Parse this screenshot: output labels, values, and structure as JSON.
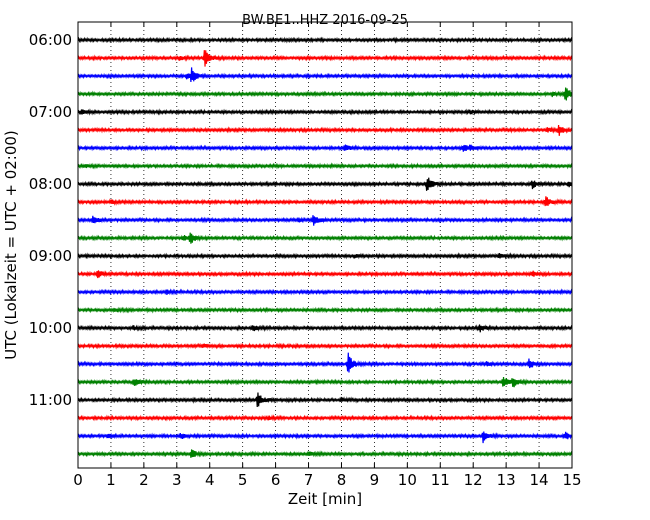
{
  "chart_data": {
    "type": "line",
    "title": "BW.BE1..HHZ 2016-09-25",
    "xlabel": "Zeit  [min]",
    "ylabel": "UTC (Lokalzeit = UTC + 02:00)",
    "xlim": [
      0,
      15
    ],
    "x_ticks": [
      "0",
      "1",
      "2",
      "3",
      "4",
      "5",
      "6",
      "7",
      "8",
      "9",
      "10",
      "11",
      "12",
      "13",
      "14",
      "15"
    ],
    "y_tick_labels": [
      "06:00",
      "07:00",
      "08:00",
      "09:00",
      "10:00",
      "11:00"
    ],
    "row_interval_min": 15,
    "grid": "vertical dotted",
    "colors": [
      "#000000",
      "#ff0000",
      "#0000ff",
      "#008000"
    ],
    "rows": [
      {
        "start": "06:00",
        "color": "#000000",
        "events": []
      },
      {
        "start": "06:15",
        "color": "#ff0000",
        "events": [
          {
            "t": 3.85,
            "amp": 1.0
          },
          {
            "t": 3.1,
            "amp": 0.2
          }
        ]
      },
      {
        "start": "06:30",
        "color": "#0000ff",
        "events": [
          {
            "t": 3.45,
            "amp": 0.7
          },
          {
            "t": 3.3,
            "amp": 0.25
          }
        ]
      },
      {
        "start": "06:45",
        "color": "#008000",
        "events": [
          {
            "t": 14.8,
            "amp": 0.7
          },
          {
            "t": 14.4,
            "amp": 0.2
          }
        ]
      },
      {
        "start": "07:00",
        "color": "#000000",
        "events": [
          {
            "t": 0.1,
            "amp": 0.25
          },
          {
            "t": 11.9,
            "amp": 0.2
          }
        ]
      },
      {
        "start": "07:15",
        "color": "#ff0000",
        "events": [
          {
            "t": 14.6,
            "amp": 0.55
          },
          {
            "t": 14.25,
            "amp": 0.2
          }
        ]
      },
      {
        "start": "07:30",
        "color": "#0000ff",
        "events": [
          {
            "t": 8.1,
            "amp": 0.4
          },
          {
            "t": 11.7,
            "amp": 0.35
          },
          {
            "t": 11.9,
            "amp": 0.25
          }
        ]
      },
      {
        "start": "07:45",
        "color": "#008000",
        "events": [
          {
            "t": 0.2,
            "amp": 0.15
          }
        ]
      },
      {
        "start": "08:00",
        "color": "#000000",
        "events": [
          {
            "t": 10.6,
            "amp": 0.8
          },
          {
            "t": 13.8,
            "amp": 0.4
          },
          {
            "t": 14.9,
            "amp": 0.3
          }
        ]
      },
      {
        "start": "08:15",
        "color": "#ff0000",
        "events": [
          {
            "t": 14.2,
            "amp": 0.5
          },
          {
            "t": 1.0,
            "amp": 0.15
          }
        ]
      },
      {
        "start": "08:30",
        "color": "#0000ff",
        "events": [
          {
            "t": 0.45,
            "amp": 0.45
          },
          {
            "t": 7.15,
            "amp": 0.65
          },
          {
            "t": 6.7,
            "amp": 0.2
          }
        ]
      },
      {
        "start": "08:45",
        "color": "#008000",
        "events": [
          {
            "t": 3.4,
            "amp": 0.65
          },
          {
            "t": 3.2,
            "amp": 0.25
          }
        ]
      },
      {
        "start": "09:00",
        "color": "#000000",
        "events": [
          {
            "t": 8.4,
            "amp": 0.2
          },
          {
            "t": 12.8,
            "amp": 0.2
          }
        ]
      },
      {
        "start": "09:15",
        "color": "#ff0000",
        "events": [
          {
            "t": 0.6,
            "amp": 0.45
          },
          {
            "t": 13.8,
            "amp": 0.25
          }
        ]
      },
      {
        "start": "09:30",
        "color": "#0000ff",
        "events": [
          {
            "t": 2.7,
            "amp": 0.2
          }
        ]
      },
      {
        "start": "09:45",
        "color": "#008000",
        "events": [
          {
            "t": 1.1,
            "amp": 0.2
          }
        ]
      },
      {
        "start": "10:00",
        "color": "#000000",
        "events": [
          {
            "t": 5.3,
            "amp": 0.35
          },
          {
            "t": 12.2,
            "amp": 0.4
          },
          {
            "t": 1.7,
            "amp": 0.2
          }
        ]
      },
      {
        "start": "10:15",
        "color": "#ff0000",
        "events": [
          {
            "t": 3.8,
            "amp": 0.2
          }
        ]
      },
      {
        "start": "10:30",
        "color": "#0000ff",
        "events": [
          {
            "t": 8.2,
            "amp": 1.1
          },
          {
            "t": 13.7,
            "amp": 0.55
          },
          {
            "t": 12.4,
            "amp": 0.2
          }
        ]
      },
      {
        "start": "10:45",
        "color": "#008000",
        "events": [
          {
            "t": 1.7,
            "amp": 0.4
          },
          {
            "t": 12.9,
            "amp": 0.6
          },
          {
            "t": 13.2,
            "amp": 0.5
          }
        ]
      },
      {
        "start": "11:00",
        "color": "#000000",
        "events": [
          {
            "t": 5.45,
            "amp": 0.8
          },
          {
            "t": 8.0,
            "amp": 0.2
          }
        ]
      },
      {
        "start": "11:15",
        "color": "#ff0000",
        "events": [
          {
            "t": 5.8,
            "amp": 0.15
          }
        ]
      },
      {
        "start": "11:30",
        "color": "#0000ff",
        "events": [
          {
            "t": 12.3,
            "amp": 0.6
          },
          {
            "t": 3.1,
            "amp": 0.3
          },
          {
            "t": 14.8,
            "amp": 0.35
          },
          {
            "t": 0.9,
            "amp": 0.25
          }
        ]
      },
      {
        "start": "11:45",
        "color": "#008000",
        "events": [
          {
            "t": 3.45,
            "amp": 0.5
          },
          {
            "t": 7.0,
            "amp": 0.2
          }
        ]
      }
    ]
  }
}
